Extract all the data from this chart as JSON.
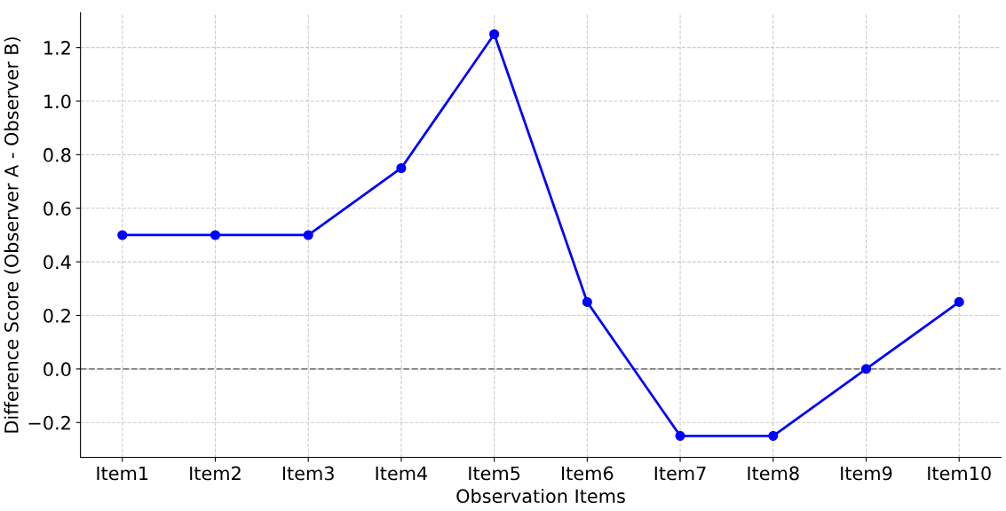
{
  "chart_data": {
    "type": "line",
    "xlabel": "Observation Items",
    "ylabel": "Difference Score (Observer A - Observer B)",
    "categories": [
      "Item1",
      "Item2",
      "Item3",
      "Item4",
      "Item5",
      "Item6",
      "Item7",
      "Item8",
      "Item9",
      "Item10"
    ],
    "series": [
      {
        "color": "#0000ff",
        "values": [
          0.5,
          0.5,
          0.5,
          0.75,
          1.25,
          0.25,
          -0.25,
          -0.25,
          0,
          0.25
        ]
      }
    ],
    "ylim": [
      -0.33,
      1.33
    ],
    "yticks": [
      {
        "value": -0.2,
        "label": "−0.2"
      },
      {
        "value": 0,
        "label": "0.0"
      },
      {
        "value": 0.2,
        "label": "0.2"
      },
      {
        "value": 0.4,
        "label": "0.4"
      },
      {
        "value": 0.6,
        "label": "0.6"
      },
      {
        "value": 0.8,
        "label": "0.8"
      },
      {
        "value": 1.0,
        "label": "1.0"
      },
      {
        "value": 1.2,
        "label": "1.2"
      }
    ],
    "ref_lines": [
      {
        "axis": "y",
        "value": 0,
        "color": "#808080",
        "line_style": "dashed"
      }
    ],
    "grid": true,
    "marker": "circle",
    "line_style": "solid"
  }
}
